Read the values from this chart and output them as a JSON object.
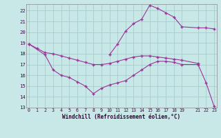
{
  "xlabel": "Windchill (Refroidissement éolien,°C)",
  "background_color": "#c8e8e8",
  "grid_color": "#a8cccc",
  "line_color": "#993399",
  "xlim": [
    -0.3,
    23.3
  ],
  "ylim": [
    13,
    22.6
  ],
  "yticks": [
    13,
    14,
    15,
    16,
    17,
    18,
    19,
    20,
    21,
    22
  ],
  "xticks": [
    0,
    1,
    2,
    3,
    4,
    5,
    6,
    7,
    8,
    9,
    10,
    11,
    12,
    13,
    14,
    15,
    16,
    17,
    18,
    19,
    21,
    22,
    23
  ],
  "series1_x": [
    0,
    1,
    2,
    3,
    4,
    5,
    6,
    7,
    8,
    9,
    10,
    11,
    12,
    13,
    14,
    15,
    16,
    17,
    18,
    19,
    21
  ],
  "series1_y": [
    18.9,
    18.5,
    18.1,
    18.0,
    17.8,
    17.6,
    17.4,
    17.2,
    17.0,
    17.0,
    17.1,
    17.3,
    17.5,
    17.7,
    17.8,
    17.8,
    17.7,
    17.6,
    17.5,
    17.4,
    17.1
  ],
  "series2_x": [
    0,
    2,
    3,
    4,
    5,
    6,
    7,
    8,
    9,
    10,
    11,
    12,
    13,
    14,
    15,
    16,
    17,
    18,
    19,
    21,
    22,
    23
  ],
  "series2_y": [
    18.9,
    17.9,
    16.5,
    16.0,
    15.8,
    15.4,
    15.0,
    14.3,
    14.8,
    15.1,
    15.3,
    15.5,
    16.0,
    16.5,
    17.0,
    17.3,
    17.3,
    17.2,
    17.0,
    17.0,
    15.3,
    13.1
  ],
  "series3_x": [
    10,
    11,
    12,
    13,
    14,
    15,
    16,
    17,
    18,
    19,
    21,
    22,
    23
  ],
  "series3_y": [
    17.9,
    18.9,
    20.1,
    20.8,
    21.2,
    22.5,
    22.2,
    21.8,
    21.4,
    20.5,
    20.4,
    20.4,
    20.3
  ]
}
